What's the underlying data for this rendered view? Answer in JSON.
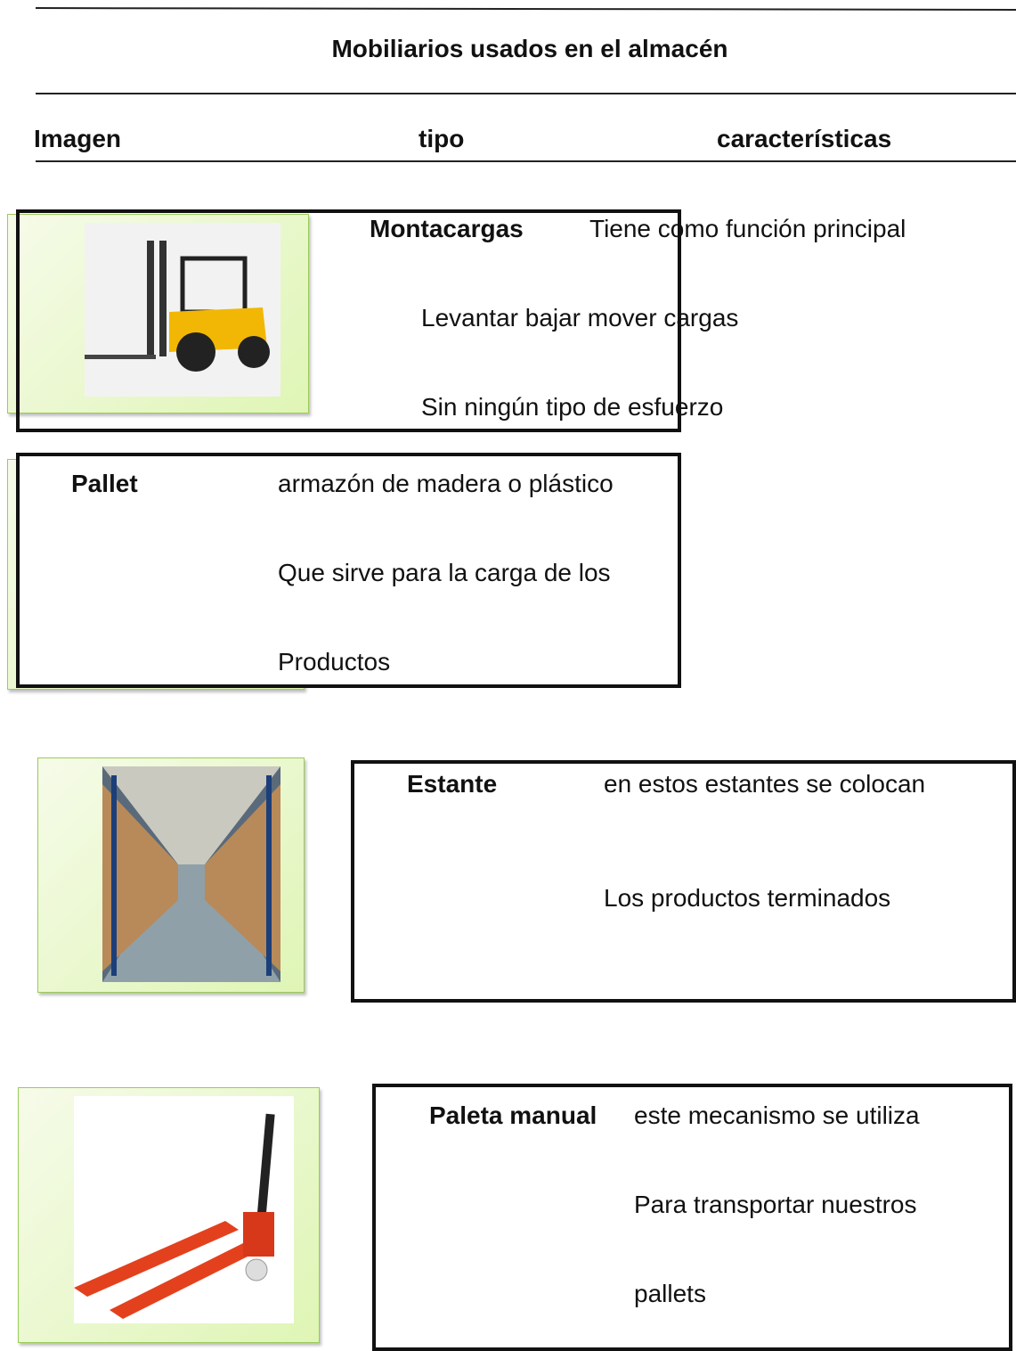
{
  "title": "Mobiliarios usados en el almacén",
  "headers": [
    "Imagen",
    "tipo",
    "características"
  ],
  "items": [
    {
      "tipo": "Montacargas",
      "lines": [
        "Tiene como función principal",
        "Levantar bajar mover cargas",
        "Sin ningún tipo de esfuerzo"
      ]
    },
    {
      "tipo": "Pallet",
      "lines": [
        "armazón de madera o plástico",
        "Que sirve para la carga de los",
        "Productos"
      ]
    },
    {
      "tipo": "Estante",
      "lines": [
        "en estos estantes se colocan",
        "Los productos terminados"
      ]
    },
    {
      "tipo": "Paleta manual",
      "lines": [
        "este mecanismo se utiliza",
        "Para transportar nuestros",
        "pallets"
      ]
    }
  ]
}
